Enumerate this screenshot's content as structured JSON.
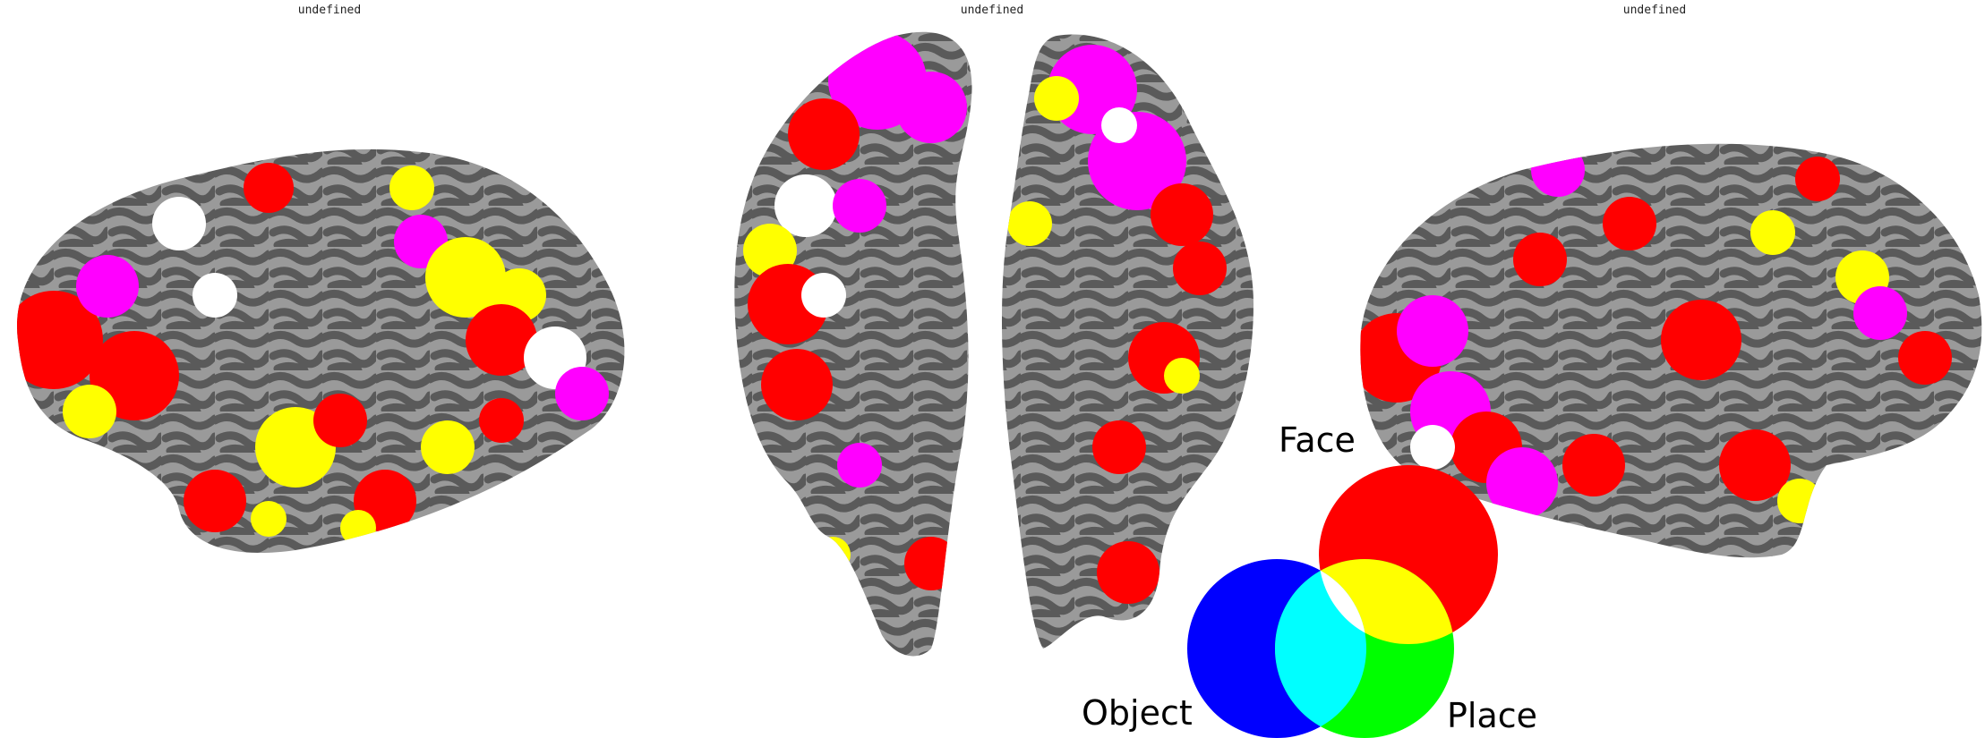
{
  "panels": [
    {
      "title": "undefined"
    },
    {
      "title": "undefined"
    },
    {
      "title": "undefined"
    }
  ],
  "legend": {
    "face_label": "Face",
    "object_label": "Object",
    "place_label": "Place"
  },
  "colors": {
    "face": "#ff0000",
    "object": "#0000ff",
    "place": "#00ff00",
    "face_object": "#ff00ff",
    "face_place": "#ffff00",
    "object_place": "#00ffff",
    "all": "#ffffff",
    "sulcus_dark": "#555555",
    "gyrus_light": "#9a9a9a"
  }
}
